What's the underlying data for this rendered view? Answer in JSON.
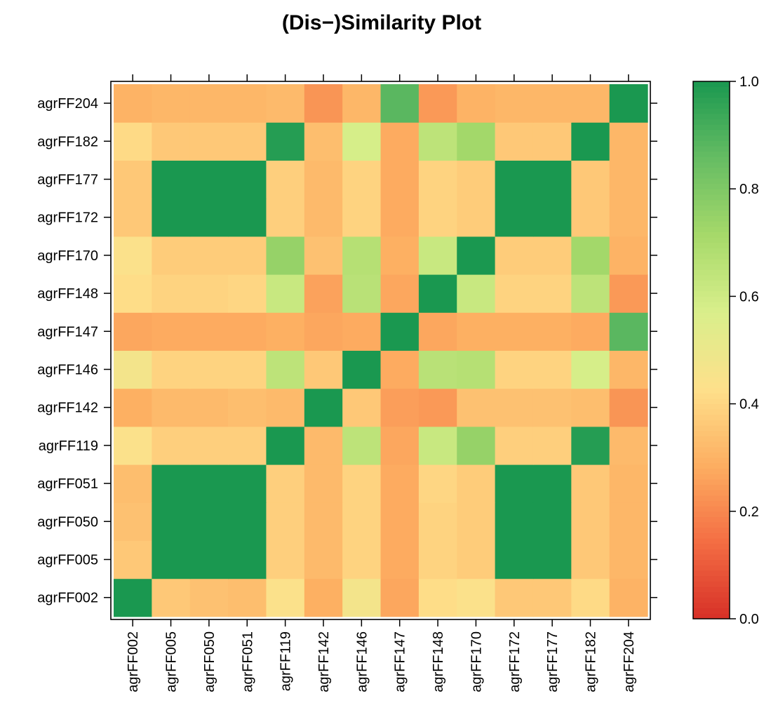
{
  "chart_data": {
    "type": "heatmap",
    "title": "(Dis−)Similarity Plot",
    "x_labels": [
      "agrFF002",
      "agrFF005",
      "agrFF050",
      "agrFF051",
      "agrFF119",
      "agrFF142",
      "agrFF146",
      "agrFF147",
      "agrFF148",
      "agrFF170",
      "agrFF172",
      "agrFF177",
      "agrFF182",
      "agrFF204"
    ],
    "y_labels": [
      "agrFF002",
      "agrFF005",
      "agrFF050",
      "agrFF051",
      "agrFF119",
      "agrFF142",
      "agrFF146",
      "agrFF147",
      "agrFF148",
      "agrFF170",
      "agrFF172",
      "agrFF177",
      "agrFF182",
      "agrFF204"
    ],
    "matrix": [
      [
        1.0,
        0.36,
        0.34,
        0.33,
        0.44,
        0.29,
        0.47,
        0.27,
        0.42,
        0.44,
        0.36,
        0.36,
        0.41,
        0.3
      ],
      [
        0.36,
        1.0,
        1.0,
        1.0,
        0.38,
        0.32,
        0.39,
        0.28,
        0.39,
        0.37,
        1.0,
        1.0,
        0.36,
        0.31
      ],
      [
        0.34,
        1.0,
        1.0,
        1.0,
        0.38,
        0.32,
        0.39,
        0.28,
        0.39,
        0.37,
        1.0,
        1.0,
        0.36,
        0.31
      ],
      [
        0.33,
        1.0,
        1.0,
        1.0,
        0.38,
        0.32,
        0.39,
        0.28,
        0.4,
        0.37,
        1.0,
        1.0,
        0.36,
        0.31
      ],
      [
        0.44,
        0.38,
        0.38,
        0.38,
        1.0,
        0.32,
        0.65,
        0.27,
        0.62,
        0.75,
        0.38,
        0.38,
        0.98,
        0.32
      ],
      [
        0.29,
        0.32,
        0.32,
        0.33,
        0.32,
        1.0,
        0.36,
        0.25,
        0.24,
        0.34,
        0.34,
        0.34,
        0.33,
        0.23
      ],
      [
        0.47,
        0.39,
        0.39,
        0.39,
        0.65,
        0.36,
        1.0,
        0.28,
        0.66,
        0.67,
        0.39,
        0.39,
        0.58,
        0.31
      ],
      [
        0.27,
        0.28,
        0.28,
        0.28,
        0.29,
        0.27,
        0.28,
        1.0,
        0.27,
        0.29,
        0.29,
        0.29,
        0.28,
        0.88
      ],
      [
        0.42,
        0.39,
        0.39,
        0.4,
        0.62,
        0.26,
        0.66,
        0.27,
        1.0,
        0.62,
        0.39,
        0.39,
        0.65,
        0.24
      ],
      [
        0.44,
        0.37,
        0.37,
        0.37,
        0.75,
        0.34,
        0.67,
        0.29,
        0.62,
        1.0,
        0.37,
        0.37,
        0.72,
        0.3
      ],
      [
        0.36,
        1.0,
        1.0,
        1.0,
        0.38,
        0.32,
        0.39,
        0.28,
        0.39,
        0.37,
        1.0,
        1.0,
        0.36,
        0.31
      ],
      [
        0.36,
        1.0,
        1.0,
        1.0,
        0.38,
        0.32,
        0.39,
        0.28,
        0.39,
        0.37,
        1.0,
        1.0,
        0.36,
        0.31
      ],
      [
        0.41,
        0.36,
        0.36,
        0.36,
        0.98,
        0.33,
        0.58,
        0.28,
        0.65,
        0.72,
        0.36,
        0.36,
        1.0,
        0.31
      ],
      [
        0.3,
        0.31,
        0.31,
        0.31,
        0.32,
        0.23,
        0.31,
        0.88,
        0.24,
        0.3,
        0.31,
        0.31,
        0.31,
        1.0
      ]
    ],
    "colorbar": {
      "range": [
        0,
        1
      ],
      "ticks": [
        0,
        0.2,
        0.4,
        0.6,
        0.8,
        1
      ],
      "tick_labels": [
        "0.0",
        "0.2",
        "0.4",
        "0.6",
        "0.8",
        "1.0"
      ],
      "colors": [
        "#D73027",
        "#F46D43",
        "#FDAE61",
        "#FEE08B",
        "#D9EF8B",
        "#A6D96A",
        "#66BD63",
        "#1A9850"
      ]
    }
  }
}
